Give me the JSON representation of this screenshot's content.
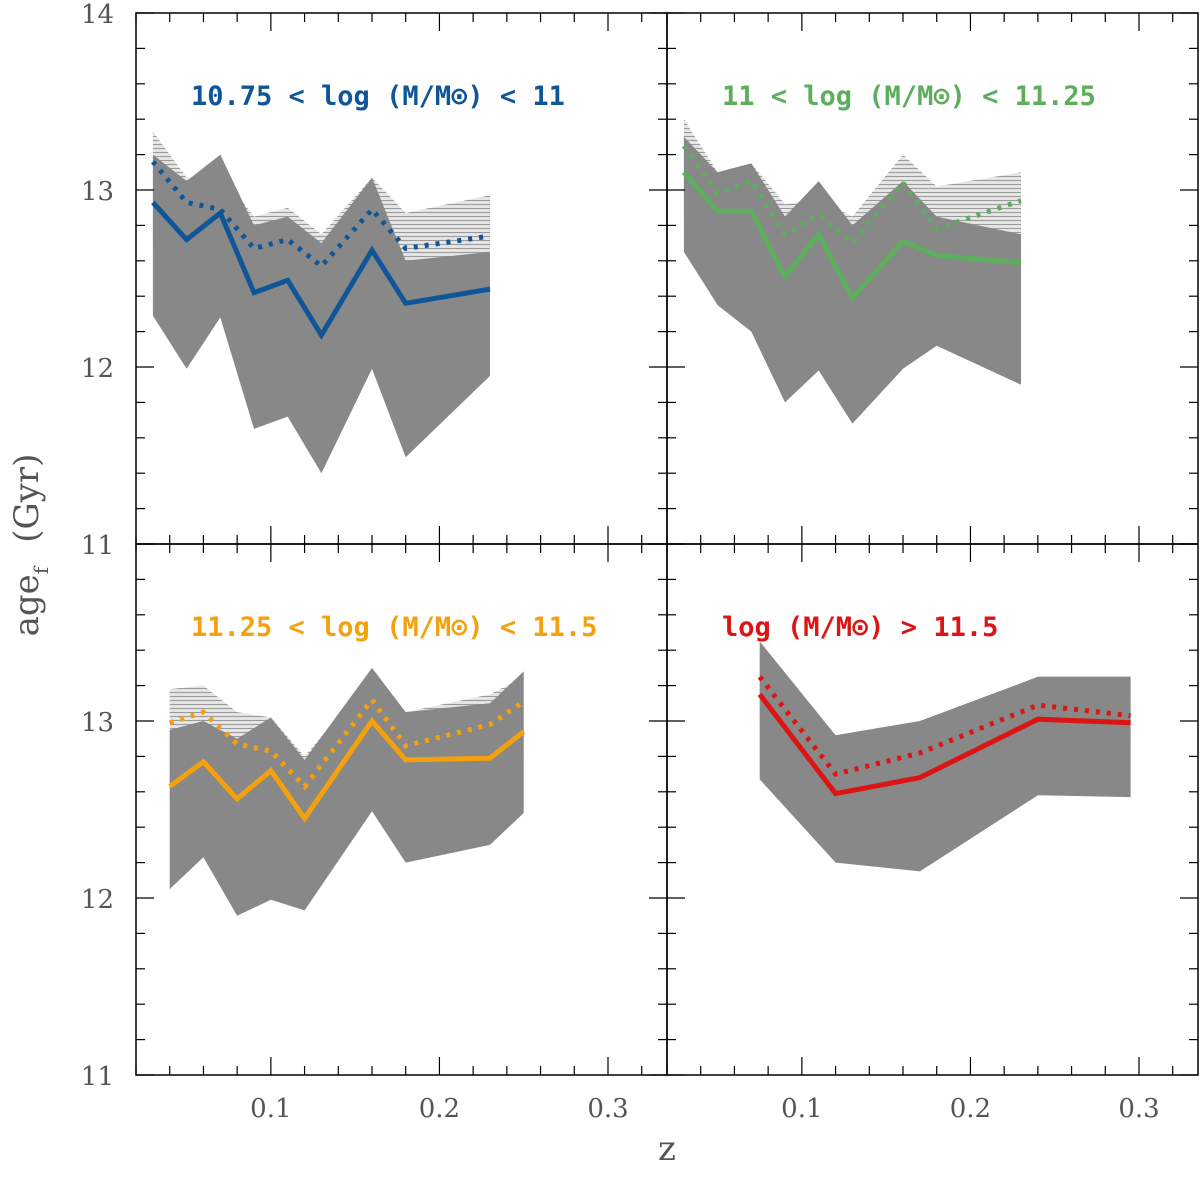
{
  "chart_data": {
    "type": "line",
    "xlabel": "z",
    "ylabel": "age",
    "ylabel_subscript": "f",
    "ylabel_unit": "(Gyr)",
    "xlim": [
      0.02,
      0.335
    ],
    "ylim": [
      11,
      14
    ],
    "x_ticks": [
      0.1,
      0.2,
      0.3
    ],
    "x_tick_labels": [
      "0.1",
      "0.2",
      "0.3"
    ],
    "y_ticks": [
      11,
      12,
      13,
      14
    ],
    "y_tick_labels": [
      "11",
      "12",
      "13",
      "14"
    ],
    "band_colors": {
      "inner": "#888888",
      "outer": "#c8c8c8"
    },
    "panels": [
      {
        "label": "10.75 < log (M/M⊙) < 11",
        "color": "#0f5699",
        "x": [
          0.03,
          0.05,
          0.07,
          0.09,
          0.11,
          0.13,
          0.16,
          0.18,
          0.23
        ],
        "solid": [
          12.93,
          12.72,
          12.87,
          12.42,
          12.49,
          12.18,
          12.66,
          12.36,
          12.44
        ],
        "dotted": [
          13.16,
          12.93,
          12.89,
          12.67,
          12.72,
          12.57,
          12.89,
          12.67,
          12.74
        ],
        "outer_upper": [
          13.33,
          13.07,
          13.1,
          12.85,
          12.9,
          12.75,
          13.07,
          12.87,
          12.97
        ],
        "outer_lower": [
          12.7,
          12.55,
          12.7,
          12.25,
          12.3,
          12.0,
          12.45,
          12.15,
          12.25
        ],
        "inner_upper": [
          13.2,
          13.05,
          13.2,
          12.8,
          12.85,
          12.7,
          13.07,
          12.6,
          12.65
        ],
        "inner_lower": [
          12.29,
          11.99,
          12.28,
          11.65,
          11.72,
          11.4,
          11.99,
          11.49,
          11.95
        ]
      },
      {
        "label": "11 < log (M/M⊙) < 11.25",
        "color": "#5cad5c",
        "x": [
          0.03,
          0.05,
          0.07,
          0.09,
          0.11,
          0.13,
          0.16,
          0.18,
          0.23
        ],
        "solid": [
          13.1,
          12.88,
          12.88,
          12.51,
          12.75,
          12.39,
          12.71,
          12.63,
          12.59
        ],
        "dotted": [
          13.25,
          12.98,
          13.05,
          12.75,
          12.86,
          12.7,
          13.04,
          12.78,
          12.94
        ],
        "outer_upper": [
          13.4,
          13.1,
          13.15,
          12.92,
          12.95,
          12.85,
          13.2,
          13.02,
          13.1
        ],
        "outer_lower": [
          12.85,
          12.65,
          12.7,
          12.3,
          12.5,
          12.2,
          12.5,
          12.4,
          12.4
        ],
        "inner_upper": [
          13.3,
          13.1,
          13.15,
          12.85,
          13.05,
          12.8,
          13.05,
          12.85,
          12.75
        ],
        "inner_lower": [
          12.65,
          12.35,
          12.2,
          11.8,
          11.98,
          11.68,
          11.99,
          12.12,
          11.9
        ]
      },
      {
        "label": "11.25 < log (M/M⊙) < 11.5",
        "color": "#f5a00d",
        "x": [
          0.04,
          0.06,
          0.08,
          0.1,
          0.12,
          0.16,
          0.18,
          0.23,
          0.25
        ],
        "solid": [
          12.63,
          12.77,
          12.56,
          12.72,
          12.45,
          13.0,
          12.78,
          12.79,
          12.94
        ],
        "dotted": [
          12.99,
          13.05,
          12.87,
          12.83,
          12.63,
          13.12,
          12.86,
          12.98,
          13.11
        ],
        "outer_upper": [
          13.18,
          13.2,
          13.05,
          13.02,
          12.8,
          13.25,
          13.05,
          13.15,
          13.25
        ],
        "outer_lower": [
          12.55,
          12.65,
          12.45,
          12.55,
          12.35,
          12.85,
          12.65,
          12.7,
          12.8
        ],
        "inner_upper": [
          12.95,
          13.0,
          12.9,
          13.02,
          12.78,
          13.3,
          13.05,
          13.1,
          13.28
        ],
        "inner_lower": [
          12.05,
          12.23,
          11.9,
          11.99,
          11.93,
          12.49,
          12.2,
          12.3,
          12.48
        ]
      },
      {
        "label": "log (M/M⊙) > 11.5",
        "color": "#dc1413",
        "x": [
          0.075,
          0.12,
          0.17,
          0.24,
          0.295
        ],
        "solid": [
          13.15,
          12.59,
          12.68,
          13.01,
          12.99
        ],
        "dotted": [
          13.25,
          12.7,
          12.82,
          13.09,
          13.03
        ],
        "outer_upper": [
          13.4,
          12.9,
          12.97,
          13.25,
          13.25
        ],
        "outer_lower": [
          13.0,
          12.55,
          12.6,
          12.85,
          12.85
        ],
        "inner_upper": [
          13.45,
          12.92,
          13.0,
          13.25,
          13.25
        ],
        "inner_lower": [
          12.67,
          12.2,
          12.15,
          12.58,
          12.57
        ]
      }
    ]
  }
}
